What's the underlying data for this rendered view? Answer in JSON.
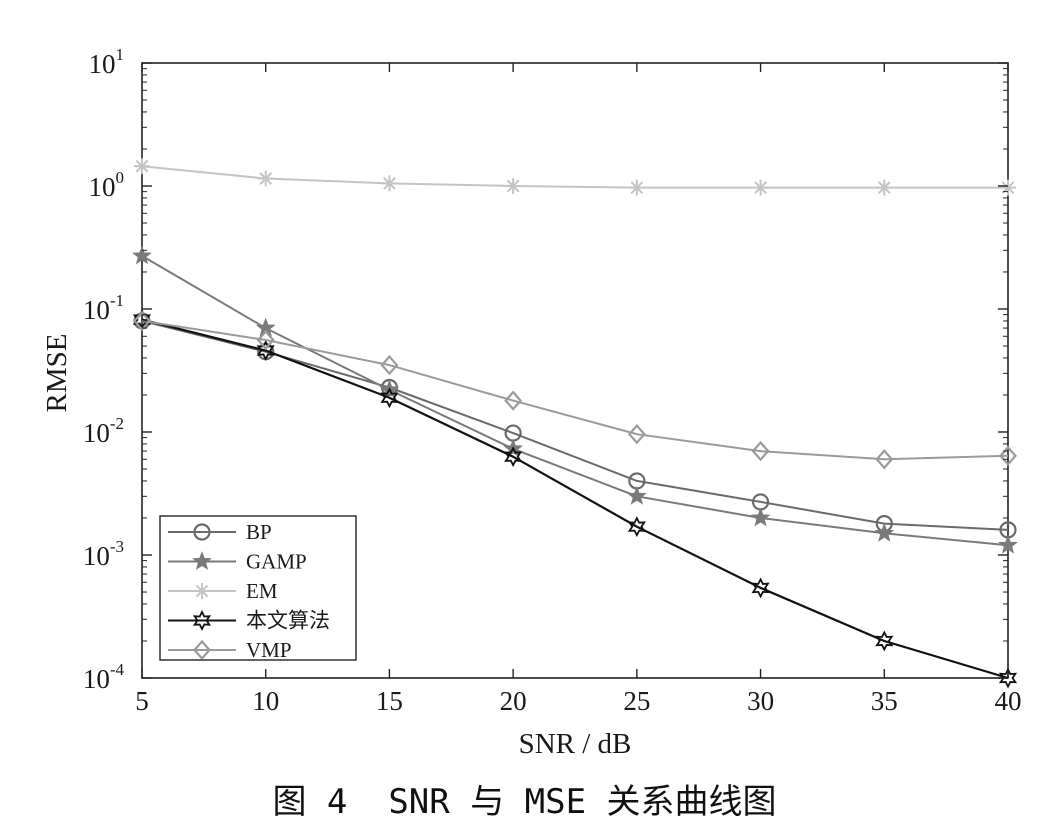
{
  "caption": "图 4  SNR 与 MSE 关系曲线图",
  "chart_data": {
    "type": "line",
    "xlabel": "SNR / dB",
    "ylabel": "RMSE",
    "x": [
      5,
      10,
      15,
      20,
      25,
      30,
      35,
      40
    ],
    "xlim": [
      5,
      40
    ],
    "ylim": [
      0.0001,
      10
    ],
    "yscale": "log",
    "xticks": [
      "5",
      "10",
      "15",
      "20",
      "25",
      "30",
      "35",
      "40"
    ],
    "yticks": [
      {
        "base": "10",
        "exp": "1"
      },
      {
        "base": "10",
        "exp": "0"
      },
      {
        "base": "10",
        "exp": "-1"
      },
      {
        "base": "10",
        "exp": "-2"
      },
      {
        "base": "10",
        "exp": "-3"
      },
      {
        "base": "10",
        "exp": "-4"
      }
    ],
    "grid": false,
    "legend_position": "bottom-left",
    "series": [
      {
        "name": "BP",
        "marker": "circle",
        "color": "#6a6a6a",
        "values": [
          0.08,
          0.045,
          0.023,
          0.0098,
          0.004,
          0.0027,
          0.0018,
          0.0016
        ]
      },
      {
        "name": "GAMP",
        "marker": "star5",
        "color": "#7a7a7a",
        "values": [
          0.27,
          0.07,
          0.022,
          0.0073,
          0.003,
          0.002,
          0.0015,
          0.0012
        ]
      },
      {
        "name": "EM",
        "marker": "asterisk",
        "color": "#c4c4c4",
        "values": [
          1.45,
          1.15,
          1.05,
          1.0,
          0.97,
          0.97,
          0.97,
          0.97
        ]
      },
      {
        "name": "本文算法",
        "marker": "hexagram",
        "color": "#111111",
        "values": [
          0.082,
          0.046,
          0.019,
          0.0063,
          0.0017,
          0.00054,
          0.0002,
          0.0001
        ]
      },
      {
        "name": "VMP",
        "marker": "diamond",
        "color": "#9a9a9a",
        "values": [
          0.08,
          0.056,
          0.035,
          0.018,
          0.0096,
          0.007,
          0.006,
          0.0064
        ]
      }
    ]
  }
}
